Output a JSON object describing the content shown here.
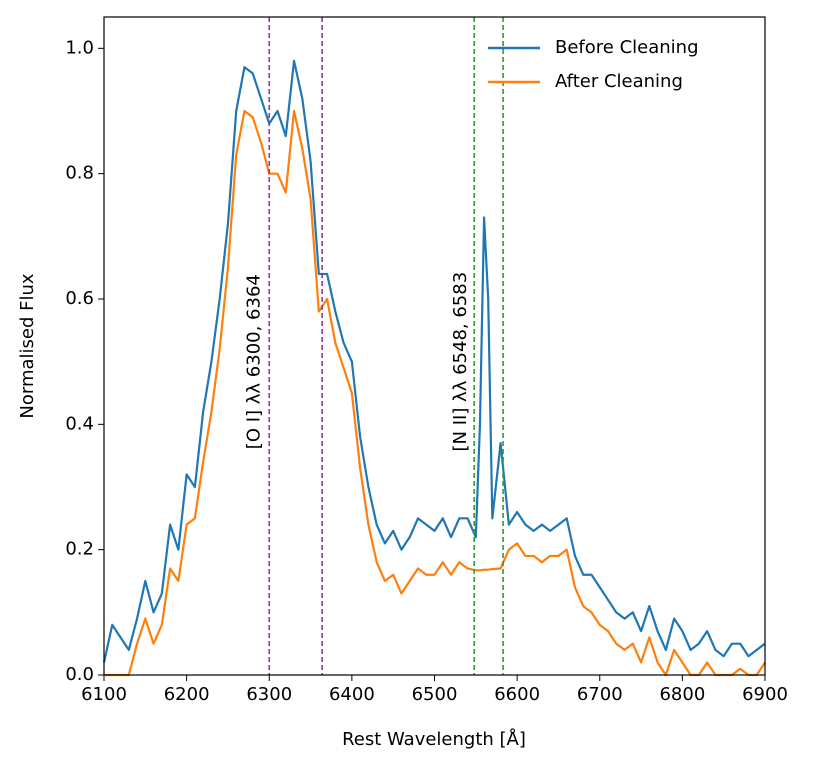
{
  "chart_data": {
    "type": "line",
    "xlabel": "Rest Wavelength [Å]",
    "ylabel": "Normalised Flux",
    "x": [
      6100,
      6110,
      6120,
      6130,
      6140,
      6150,
      6160,
      6170,
      6180,
      6190,
      6200,
      6210,
      6220,
      6230,
      6240,
      6250,
      6260,
      6270,
      6280,
      6290,
      6300,
      6310,
      6320,
      6330,
      6340,
      6350,
      6360,
      6370,
      6380,
      6390,
      6400,
      6410,
      6420,
      6430,
      6440,
      6450,
      6460,
      6470,
      6480,
      6490,
      6500,
      6510,
      6520,
      6530,
      6540,
      6550,
      6555,
      6560,
      6565,
      6570,
      6580,
      6590,
      6600,
      6610,
      6620,
      6630,
      6640,
      6650,
      6660,
      6670,
      6680,
      6690,
      6700,
      6710,
      6720,
      6730,
      6740,
      6750,
      6760,
      6770,
      6780,
      6790,
      6800,
      6810,
      6820,
      6830,
      6840,
      6850,
      6860,
      6870,
      6880,
      6890,
      6900
    ],
    "series": [
      {
        "name": "Before Cleaning",
        "color": "#1f77b4",
        "values": [
          0.02,
          0.08,
          0.06,
          0.04,
          0.09,
          0.15,
          0.1,
          0.13,
          0.24,
          0.2,
          0.32,
          0.3,
          0.42,
          0.5,
          0.6,
          0.72,
          0.9,
          0.97,
          0.96,
          0.92,
          0.88,
          0.9,
          0.86,
          0.98,
          0.92,
          0.82,
          0.64,
          0.64,
          0.58,
          0.53,
          0.5,
          0.38,
          0.3,
          0.24,
          0.21,
          0.23,
          0.2,
          0.22,
          0.25,
          0.24,
          0.23,
          0.25,
          0.22,
          0.25,
          0.25,
          0.22,
          0.4,
          0.73,
          0.6,
          0.25,
          0.37,
          0.24,
          0.26,
          0.24,
          0.23,
          0.24,
          0.23,
          0.24,
          0.25,
          0.19,
          0.16,
          0.16,
          0.14,
          0.12,
          0.1,
          0.09,
          0.1,
          0.07,
          0.11,
          0.07,
          0.04,
          0.09,
          0.07,
          0.04,
          0.05,
          0.07,
          0.04,
          0.03,
          0.05,
          0.05,
          0.03,
          0.04,
          0.05
        ]
      },
      {
        "name": "After Cleaning",
        "color": "#ff7f0e",
        "values": [
          0.0,
          0.0,
          0.0,
          0.0,
          0.05,
          0.09,
          0.05,
          0.08,
          0.17,
          0.15,
          0.24,
          0.25,
          0.34,
          0.42,
          0.52,
          0.65,
          0.83,
          0.9,
          0.89,
          0.85,
          0.8,
          0.8,
          0.77,
          0.9,
          0.84,
          0.76,
          0.58,
          0.6,
          0.53,
          0.49,
          0.45,
          0.33,
          0.24,
          0.18,
          0.15,
          0.16,
          0.13,
          0.15,
          0.17,
          0.16,
          0.16,
          0.18,
          0.16,
          0.18,
          0.17,
          0.167,
          0.167,
          0.168,
          0.168,
          0.169,
          0.17,
          0.2,
          0.21,
          0.19,
          0.19,
          0.18,
          0.19,
          0.19,
          0.2,
          0.14,
          0.11,
          0.1,
          0.08,
          0.07,
          0.05,
          0.04,
          0.05,
          0.02,
          0.06,
          0.02,
          0.0,
          0.04,
          0.02,
          0.0,
          0.0,
          0.02,
          0.0,
          0.0,
          0.0,
          0.01,
          0.0,
          0.0,
          0.02
        ]
      }
    ],
    "xlim": [
      6100,
      6900
    ],
    "ylim": [
      0,
      1.05
    ],
    "xticks": [
      6100,
      6200,
      6300,
      6400,
      6500,
      6600,
      6700,
      6800,
      6900
    ],
    "yticks": [
      {
        "value": 0,
        "label": "0.0"
      },
      0.2,
      0.4,
      0.6,
      0.8,
      {
        "value": 1,
        "label": "1.0"
      }
    ],
    "vlines": [
      {
        "x": 6300,
        "color": "#9b30b0"
      },
      {
        "x": 6364,
        "color": "#9b30b0"
      },
      {
        "x": 6548,
        "color": "#2ca02c"
      },
      {
        "x": 6583,
        "color": "#2ca02c"
      }
    ],
    "annotations": [
      {
        "text": "[O I] λλ 6300, 6364",
        "x": 6282,
        "y": 0.5
      },
      {
        "text": "[N II] λλ 6548, 6583",
        "x": 6532,
        "y": 0.5
      }
    ],
    "legend": "upper right"
  }
}
